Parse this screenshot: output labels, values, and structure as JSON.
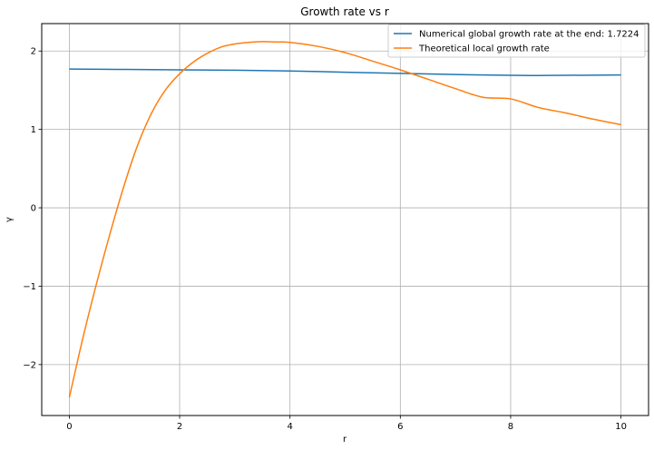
{
  "chart_data": {
    "type": "line",
    "title": "Growth rate vs r",
    "xlabel": "r",
    "ylabel": "γ",
    "xlim": [
      -0.5,
      10.5
    ],
    "ylim": [
      -2.65,
      2.35
    ],
    "xticks": [
      0,
      2,
      4,
      6,
      8,
      10
    ],
    "yticks": [
      -2,
      -1,
      0,
      1,
      2
    ],
    "xtick_labels": [
      "0",
      "2",
      "4",
      "6",
      "8",
      "10"
    ],
    "ytick_labels": [
      "−2",
      "−1",
      "0",
      "1",
      "2"
    ],
    "grid": true,
    "legend_position": "top-right",
    "series": [
      {
        "name": "Numerical global growth rate at the end: 1.7224",
        "color": "#1f77b4",
        "x": [
          0,
          1,
          2,
          3,
          4,
          5,
          6,
          7,
          8,
          8.5,
          9,
          10
        ],
        "y": [
          1.77,
          1.765,
          1.76,
          1.755,
          1.745,
          1.73,
          1.715,
          1.7,
          1.69,
          1.688,
          1.69,
          1.695
        ]
      },
      {
        "name": "Theoretical local growth rate",
        "color": "#ff7f0e",
        "x": [
          0,
          0.25,
          0.5,
          0.75,
          1,
          1.25,
          1.5,
          1.75,
          2,
          2.25,
          2.5,
          2.75,
          3,
          3.25,
          3.5,
          3.75,
          4,
          4.5,
          5,
          5.5,
          6,
          6.5,
          7,
          7.5,
          8,
          8.5,
          9,
          9.5,
          10
        ],
        "y": [
          -2.42,
          -1.65,
          -0.95,
          -0.3,
          0.3,
          0.82,
          1.22,
          1.51,
          1.71,
          1.86,
          1.97,
          2.05,
          2.09,
          2.11,
          2.12,
          2.115,
          2.11,
          2.06,
          1.98,
          1.87,
          1.76,
          1.64,
          1.52,
          1.41,
          1.39,
          1.28,
          1.21,
          1.13,
          1.06
        ]
      }
    ]
  }
}
